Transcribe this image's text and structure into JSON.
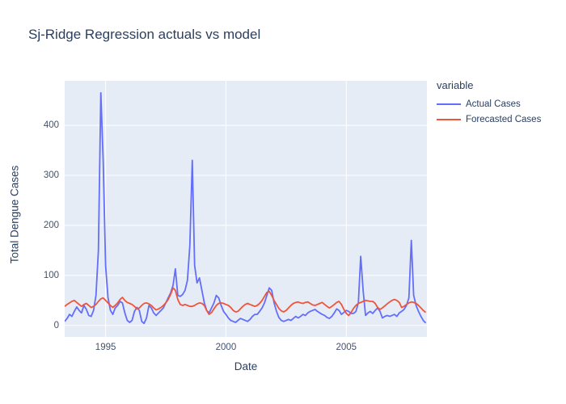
{
  "title": "Sj-Ridge Regression actuals vs model",
  "legend": {
    "title": "variable",
    "items": [
      {
        "label": "Actual Cases",
        "color": "#636efa"
      },
      {
        "label": "Forecasted Cases",
        "color": "#ef553b"
      }
    ]
  },
  "colors": {
    "plot_background": "#e5ecf6",
    "gridline": "#ffffff",
    "title_text": "#2a3f5f",
    "tick_text": "#42526e",
    "actual_line": "#636efa",
    "forecast_line": "#ef553b"
  },
  "chart_data": {
    "type": "line",
    "title": "Sj-Ridge Regression actuals vs model",
    "xlabel": "Date",
    "ylabel": "Total Dengue Cases",
    "legend_title": "variable",
    "legend_position": "top-right-outside",
    "grid": true,
    "x_axis": {
      "ticks": [
        1995,
        2000,
        2005
      ],
      "range": [
        1993.3,
        2008.35
      ]
    },
    "y_axis": {
      "ticks": [
        0,
        100,
        200,
        300,
        400
      ],
      "range": [
        -23,
        489
      ]
    },
    "x_start": 1993.3,
    "x_step": 0.1,
    "series": [
      {
        "name": "Actual Cases",
        "color": "#636efa",
        "values": [
          8,
          14,
          22,
          18,
          28,
          37,
          30,
          25,
          40,
          32,
          20,
          18,
          30,
          60,
          150,
          465,
          330,
          120,
          55,
          30,
          22,
          35,
          40,
          48,
          45,
          25,
          10,
          6,
          10,
          28,
          36,
          30,
          8,
          4,
          15,
          40,
          35,
          25,
          20,
          25,
          30,
          35,
          45,
          55,
          65,
          80,
          113,
          60,
          58,
          62,
          70,
          90,
          160,
          330,
          120,
          85,
          95,
          70,
          45,
          30,
          25,
          35,
          45,
          60,
          55,
          40,
          28,
          22,
          15,
          10,
          8,
          6,
          10,
          14,
          12,
          10,
          8,
          12,
          18,
          22,
          22,
          28,
          35,
          45,
          60,
          75,
          70,
          45,
          28,
          16,
          10,
          8,
          10,
          12,
          10,
          14,
          18,
          15,
          18,
          22,
          20,
          25,
          28,
          30,
          32,
          28,
          25,
          22,
          20,
          16,
          14,
          18,
          25,
          33,
          30,
          22,
          26,
          30,
          28,
          24,
          24,
          28,
          45,
          138,
          70,
          20,
          25,
          28,
          24,
          30,
          35,
          28,
          15,
          18,
          20,
          18,
          20,
          22,
          18,
          25,
          28,
          32,
          40,
          55,
          170,
          60,
          40,
          28,
          18,
          10,
          5
        ]
      },
      {
        "name": "Forecasted Cases",
        "color": "#ef553b",
        "values": [
          38,
          42,
          45,
          48,
          50,
          46,
          42,
          38,
          42,
          44,
          40,
          36,
          38,
          42,
          48,
          53,
          55,
          50,
          45,
          40,
          36,
          40,
          45,
          52,
          56,
          50,
          46,
          44,
          42,
          38,
          33,
          35,
          40,
          44,
          45,
          43,
          40,
          35,
          31,
          33,
          36,
          40,
          45,
          52,
          62,
          75,
          70,
          52,
          42,
          40,
          42,
          40,
          38,
          38,
          40,
          43,
          45,
          44,
          40,
          30,
          22,
          26,
          33,
          40,
          44,
          45,
          44,
          42,
          40,
          36,
          30,
          27,
          28,
          33,
          38,
          42,
          44,
          42,
          40,
          38,
          40,
          44,
          50,
          58,
          66,
          68,
          60,
          50,
          42,
          34,
          29,
          27,
          30,
          35,
          40,
          44,
          46,
          47,
          45,
          44,
          46,
          47,
          44,
          41,
          40,
          42,
          44,
          46,
          42,
          38,
          35,
          38,
          42,
          46,
          48,
          42,
          32,
          24,
          20,
          26,
          34,
          40,
          44,
          46,
          48,
          50,
          49,
          48,
          48,
          44,
          36,
          32,
          35,
          39,
          43,
          47,
          50,
          52,
          50,
          46,
          36,
          38,
          42,
          45,
          47,
          46,
          44,
          40,
          35,
          30,
          26
        ]
      }
    ]
  }
}
